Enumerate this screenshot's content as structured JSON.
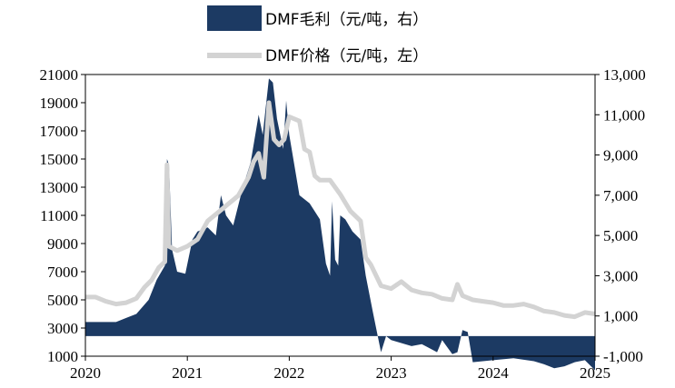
{
  "chart_data": {
    "type": "area+line",
    "series": [
      {
        "name": "DMF毛利（元/吨，右）",
        "kind": "area",
        "axis": "right",
        "color": "#1c3a63",
        "points": [
          [
            2020.0,
            700
          ],
          [
            2020.3,
            700
          ],
          [
            2020.4,
            900
          ],
          [
            2020.5,
            1100
          ],
          [
            2020.62,
            1800
          ],
          [
            2020.7,
            2800
          ],
          [
            2020.78,
            3500
          ],
          [
            2020.8,
            8800
          ],
          [
            2020.82,
            8500
          ],
          [
            2020.85,
            4300
          ],
          [
            2020.9,
            3200
          ],
          [
            2020.98,
            3100
          ],
          [
            2021.05,
            4800
          ],
          [
            2021.1,
            5200
          ],
          [
            2021.2,
            5400
          ],
          [
            2021.28,
            5000
          ],
          [
            2021.33,
            7000
          ],
          [
            2021.38,
            6000
          ],
          [
            2021.45,
            5500
          ],
          [
            2021.55,
            7500
          ],
          [
            2021.62,
            8600
          ],
          [
            2021.7,
            11000
          ],
          [
            2021.74,
            10000
          ],
          [
            2021.8,
            12800
          ],
          [
            2021.84,
            12600
          ],
          [
            2021.88,
            10800
          ],
          [
            2021.94,
            9300
          ],
          [
            2021.97,
            11700
          ],
          [
            2022.0,
            10000
          ],
          [
            2022.1,
            7000
          ],
          [
            2022.2,
            6600
          ],
          [
            2022.3,
            5800
          ],
          [
            2022.36,
            3600
          ],
          [
            2022.4,
            3000
          ],
          [
            2022.42,
            6700
          ],
          [
            2022.45,
            3800
          ],
          [
            2022.48,
            3500
          ],
          [
            2022.5,
            6000
          ],
          [
            2022.55,
            5800
          ],
          [
            2022.62,
            5200
          ],
          [
            2022.7,
            4800
          ],
          [
            2022.75,
            3000
          ],
          [
            2022.82,
            1200
          ],
          [
            2022.9,
            -800
          ],
          [
            2022.95,
            0
          ],
          [
            2023.0,
            -200
          ],
          [
            2023.2,
            -500
          ],
          [
            2023.3,
            -400
          ],
          [
            2023.45,
            -800
          ],
          [
            2023.5,
            -200
          ],
          [
            2023.6,
            -900
          ],
          [
            2023.65,
            -800
          ],
          [
            2023.7,
            300
          ],
          [
            2023.75,
            200
          ],
          [
            2023.8,
            -1300
          ],
          [
            2024.0,
            -1200
          ],
          [
            2024.2,
            -1100
          ],
          [
            2024.4,
            -1250
          ],
          [
            2024.5,
            -1400
          ],
          [
            2024.6,
            -1600
          ],
          [
            2024.7,
            -1500
          ],
          [
            2024.8,
            -1300
          ],
          [
            2024.9,
            -1200
          ],
          [
            2025.0,
            -1700
          ]
        ]
      },
      {
        "name": "DMF价格（元/吨，左）",
        "kind": "line",
        "axis": "left",
        "color": "#d3d3d3",
        "points": [
          [
            2020.0,
            5200
          ],
          [
            2020.1,
            5200
          ],
          [
            2020.2,
            4900
          ],
          [
            2020.3,
            4700
          ],
          [
            2020.4,
            4800
          ],
          [
            2020.5,
            5100
          ],
          [
            2020.58,
            5900
          ],
          [
            2020.65,
            6400
          ],
          [
            2020.72,
            7300
          ],
          [
            2020.78,
            7700
          ],
          [
            2020.8,
            14600
          ],
          [
            2020.82,
            8800
          ],
          [
            2020.9,
            8500
          ],
          [
            2021.0,
            8800
          ],
          [
            2021.1,
            9300
          ],
          [
            2021.2,
            10600
          ],
          [
            2021.3,
            11200
          ],
          [
            2021.4,
            11800
          ],
          [
            2021.5,
            12400
          ],
          [
            2021.6,
            13700
          ],
          [
            2021.65,
            14800
          ],
          [
            2021.7,
            15400
          ],
          [
            2021.75,
            13700
          ],
          [
            2021.8,
            19000
          ],
          [
            2021.85,
            16400
          ],
          [
            2021.9,
            16000
          ],
          [
            2021.95,
            16400
          ],
          [
            2022.0,
            18000
          ],
          [
            2022.1,
            17700
          ],
          [
            2022.15,
            15700
          ],
          [
            2022.2,
            15500
          ],
          [
            2022.25,
            13800
          ],
          [
            2022.3,
            13500
          ],
          [
            2022.4,
            13500
          ],
          [
            2022.5,
            12500
          ],
          [
            2022.6,
            11300
          ],
          [
            2022.7,
            10600
          ],
          [
            2022.75,
            8000
          ],
          [
            2022.8,
            7500
          ],
          [
            2022.9,
            6000
          ],
          [
            2023.0,
            5800
          ],
          [
            2023.1,
            6300
          ],
          [
            2023.2,
            5700
          ],
          [
            2023.3,
            5500
          ],
          [
            2023.4,
            5400
          ],
          [
            2023.5,
            5100
          ],
          [
            2023.6,
            5000
          ],
          [
            2023.65,
            6100
          ],
          [
            2023.7,
            5300
          ],
          [
            2023.8,
            5000
          ],
          [
            2023.9,
            4900
          ],
          [
            2024.0,
            4800
          ],
          [
            2024.1,
            4600
          ],
          [
            2024.2,
            4600
          ],
          [
            2024.3,
            4700
          ],
          [
            2024.4,
            4500
          ],
          [
            2024.5,
            4200
          ],
          [
            2024.6,
            4100
          ],
          [
            2024.7,
            3900
          ],
          [
            2024.8,
            3800
          ],
          [
            2024.9,
            4100
          ],
          [
            2025.0,
            4000
          ]
        ]
      }
    ],
    "x_axis": {
      "ticks": [
        "2020",
        "2021",
        "2022",
        "2023",
        "2024",
        "2025"
      ],
      "range": [
        2020,
        2025
      ]
    },
    "left_axis": {
      "range": [
        1000,
        21000
      ],
      "ticks": [
        "21000",
        "19000",
        "17000",
        "15000",
        "13000",
        "11000",
        "9000",
        "7000",
        "5000",
        "3000",
        "1000"
      ]
    },
    "right_axis": {
      "range": [
        -1000,
        13000
      ],
      "ticks": [
        "13,000",
        "11,000",
        "9,000",
        "7,000",
        "5,000",
        "3,000",
        "1,000",
        "-1,000"
      ]
    },
    "legend_position": "top-center",
    "grid": false
  }
}
